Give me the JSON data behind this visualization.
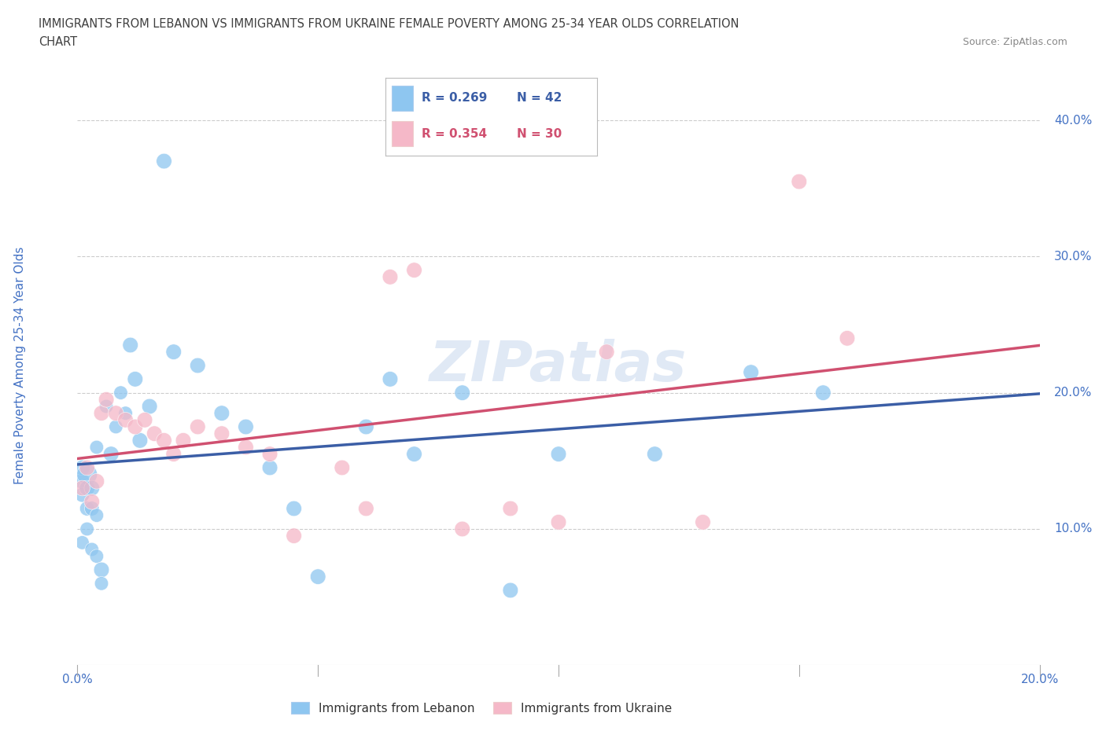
{
  "title_line1": "IMMIGRANTS FROM LEBANON VS IMMIGRANTS FROM UKRAINE FEMALE POVERTY AMONG 25-34 YEAR OLDS CORRELATION",
  "title_line2": "CHART",
  "source": "Source: ZipAtlas.com",
  "ylabel": "Female Poverty Among 25-34 Year Olds",
  "xlim": [
    0,
    0.2
  ],
  "ylim": [
    0.0,
    0.44
  ],
  "xtick_positions": [
    0.0,
    0.05,
    0.1,
    0.15,
    0.2
  ],
  "ytick_vals_right": [
    0.1,
    0.2,
    0.3,
    0.4
  ],
  "ytick_labels_right": [
    "10.0%",
    "20.0%",
    "30.0%",
    "40.0%"
  ],
  "legend1_R": "0.269",
  "legend1_N": "42",
  "legend2_R": "0.354",
  "legend2_N": "30",
  "legend_label1": "Immigrants from Lebanon",
  "legend_label2": "Immigrants from Ukraine",
  "watermark": "ZIPatlas",
  "color_lebanon": "#8EC6F0",
  "color_ukraine": "#F5B8C8",
  "color_line_lebanon": "#3B5EA6",
  "color_line_ukraine": "#D05070",
  "lebanon_x": [
    0.001,
    0.001,
    0.001,
    0.001,
    0.002,
    0.002,
    0.002,
    0.002,
    0.003,
    0.003,
    0.003,
    0.004,
    0.004,
    0.004,
    0.005,
    0.005,
    0.006,
    0.007,
    0.008,
    0.009,
    0.01,
    0.011,
    0.012,
    0.013,
    0.015,
    0.018,
    0.02,
    0.025,
    0.03,
    0.035,
    0.04,
    0.045,
    0.05,
    0.06,
    0.065,
    0.07,
    0.08,
    0.09,
    0.1,
    0.12,
    0.14,
    0.155
  ],
  "lebanon_y": [
    0.135,
    0.145,
    0.125,
    0.09,
    0.14,
    0.13,
    0.115,
    0.1,
    0.13,
    0.115,
    0.085,
    0.08,
    0.11,
    0.16,
    0.07,
    0.06,
    0.19,
    0.155,
    0.175,
    0.2,
    0.185,
    0.235,
    0.21,
    0.165,
    0.19,
    0.37,
    0.23,
    0.22,
    0.185,
    0.175,
    0.145,
    0.115,
    0.065,
    0.175,
    0.21,
    0.155,
    0.2,
    0.055,
    0.155,
    0.155,
    0.215,
    0.2
  ],
  "lebanon_s": [
    200,
    200,
    180,
    160,
    350,
    200,
    180,
    160,
    200,
    180,
    160,
    160,
    160,
    160,
    200,
    160,
    160,
    200,
    160,
    160,
    160,
    200,
    200,
    200,
    200,
    200,
    200,
    200,
    200,
    200,
    200,
    200,
    200,
    200,
    200,
    200,
    200,
    200,
    200,
    200,
    200,
    200
  ],
  "ukraine_x": [
    0.001,
    0.002,
    0.003,
    0.004,
    0.005,
    0.006,
    0.008,
    0.01,
    0.012,
    0.014,
    0.016,
    0.018,
    0.02,
    0.022,
    0.025,
    0.03,
    0.035,
    0.04,
    0.045,
    0.055,
    0.06,
    0.065,
    0.07,
    0.08,
    0.09,
    0.1,
    0.11,
    0.13,
    0.15,
    0.16
  ],
  "ukraine_y": [
    0.13,
    0.145,
    0.12,
    0.135,
    0.185,
    0.195,
    0.185,
    0.18,
    0.175,
    0.18,
    0.17,
    0.165,
    0.155,
    0.165,
    0.175,
    0.17,
    0.16,
    0.155,
    0.095,
    0.145,
    0.115,
    0.285,
    0.29,
    0.1,
    0.115,
    0.105,
    0.23,
    0.105,
    0.355,
    0.24
  ],
  "ukraine_s": [
    200,
    200,
    200,
    200,
    200,
    200,
    200,
    200,
    200,
    200,
    200,
    200,
    200,
    200,
    200,
    200,
    200,
    200,
    200,
    200,
    200,
    200,
    200,
    200,
    200,
    200,
    200,
    200,
    200,
    200
  ],
  "grid_color": "#CCCCCC",
  "bg_color": "#FFFFFF",
  "title_color": "#404040",
  "axis_label_color": "#4472C4",
  "tick_label_color": "#4472C4"
}
